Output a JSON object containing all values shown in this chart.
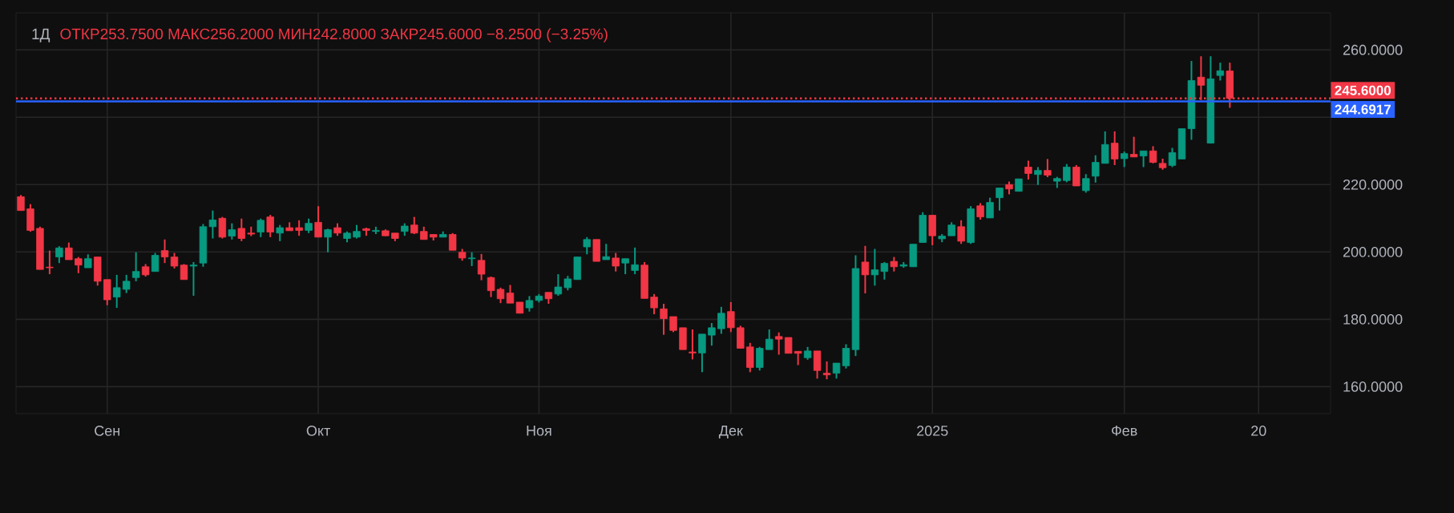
{
  "chart_data": {
    "type": "candlestick",
    "title": "1Д",
    "subtitle": "ОТКР253.7500 МАКС256.2000 МИН242.8000 ЗАКР245.6000 −8.2500 (−3.25%)",
    "categories": [
      null,
      null,
      null,
      null,
      null,
      null,
      null,
      null,
      null,
      "Сен",
      null,
      null,
      null,
      null,
      null,
      null,
      null,
      null,
      null,
      null,
      null,
      null,
      null,
      null,
      null,
      null,
      null,
      null,
      null,
      null,
      null,
      "Окт",
      null,
      null,
      null,
      null,
      null,
      null,
      null,
      null,
      null,
      null,
      null,
      null,
      null,
      null,
      null,
      null,
      null,
      null,
      null,
      null,
      null,
      null,
      "Ноя",
      null,
      null,
      null,
      null,
      null,
      null,
      null,
      null,
      null,
      null,
      null,
      null,
      null,
      null,
      null,
      null,
      null,
      null,
      null,
      "Дек",
      null,
      null,
      null,
      null,
      null,
      null,
      null,
      null,
      null,
      null,
      null,
      null,
      null,
      null,
      null,
      null,
      null,
      null,
      null,
      null,
      "2025",
      null,
      null,
      null,
      null,
      null,
      null,
      null,
      null,
      null,
      null,
      null,
      null,
      null,
      null,
      null,
      null,
      null,
      null,
      null,
      "Фев",
      null,
      null,
      null,
      null,
      null,
      null,
      null,
      null,
      null,
      null,
      null,
      null,
      null,
      "20",
      null,
      null,
      null,
      null,
      null,
      null,
      null
    ],
    "ohlc": [
      [
        216.4,
        216.9,
        212.3,
        212.3
      ],
      [
        212.8,
        214.2,
        206.0,
        206.4
      ],
      [
        207.0,
        207.5,
        194.8,
        194.8
      ],
      [
        195.5,
        200.4,
        193.4,
        195.3
      ],
      [
        198.5,
        201.7,
        196.7,
        201.2
      ],
      [
        201.2,
        202.8,
        197.7,
        197.7
      ],
      [
        198.0,
        198.5,
        193.7,
        196.1
      ],
      [
        195.3,
        199.3,
        195.3,
        198.0
      ],
      [
        198.5,
        198.5,
        190.0,
        191.3
      ],
      [
        191.8,
        191.8,
        184.2,
        185.8
      ],
      [
        186.6,
        193.2,
        183.4,
        189.4
      ],
      [
        188.9,
        193.2,
        187.8,
        191.3
      ],
      [
        192.4,
        199.9,
        191.3,
        194.2
      ],
      [
        195.6,
        196.4,
        192.7,
        193.2
      ],
      [
        194.2,
        199.7,
        194.2,
        199.0
      ],
      [
        200.4,
        203.7,
        196.7,
        198.5
      ],
      [
        198.5,
        199.7,
        195.1,
        195.8
      ],
      [
        196.1,
        196.4,
        191.8,
        191.8
      ],
      [
        195.8,
        197.0,
        187.0,
        196.1
      ],
      [
        196.7,
        208.3,
        195.6,
        207.5
      ],
      [
        207.5,
        212.3,
        204.0,
        209.5
      ],
      [
        210.0,
        210.4,
        204.0,
        204.4
      ],
      [
        204.7,
        208.5,
        203.7,
        206.6
      ],
      [
        207.0,
        209.9,
        203.2,
        204.0
      ],
      [
        205.6,
        207.5,
        204.7,
        205.3
      ],
      [
        205.9,
        209.9,
        204.4,
        209.4
      ],
      [
        210.4,
        211.0,
        204.4,
        205.9
      ],
      [
        205.6,
        208.0,
        203.2,
        207.2
      ],
      [
        207.2,
        208.8,
        206.3,
        206.3
      ],
      [
        207.2,
        209.4,
        204.8,
        206.4
      ],
      [
        206.4,
        209.9,
        205.6,
        208.5
      ],
      [
        208.8,
        213.6,
        204.4,
        204.4
      ],
      [
        204.4,
        206.9,
        199.9,
        206.6
      ],
      [
        207.2,
        208.5,
        204.8,
        205.6
      ],
      [
        204.0,
        206.1,
        202.9,
        205.6
      ],
      [
        204.4,
        208.0,
        204.0,
        206.1
      ],
      [
        206.9,
        207.2,
        204.8,
        206.4
      ],
      [
        206.1,
        207.5,
        205.3,
        206.4
      ],
      [
        206.3,
        206.7,
        204.7,
        204.8
      ],
      [
        205.6,
        205.6,
        203.2,
        204.0
      ],
      [
        206.1,
        208.5,
        204.8,
        207.7
      ],
      [
        208.0,
        210.4,
        205.3,
        205.6
      ],
      [
        206.1,
        207.5,
        203.7,
        203.7
      ],
      [
        205.2,
        205.2,
        203.4,
        204.4
      ],
      [
        204.4,
        206.1,
        204.4,
        205.2
      ],
      [
        205.2,
        205.6,
        200.5,
        200.5
      ],
      [
        199.9,
        200.9,
        197.4,
        198.2
      ],
      [
        198.0,
        199.9,
        195.8,
        198.2
      ],
      [
        197.5,
        199.4,
        191.6,
        193.4
      ],
      [
        192.4,
        192.7,
        186.6,
        188.5
      ],
      [
        188.9,
        189.4,
        184.8,
        186.1
      ],
      [
        187.8,
        190.2,
        184.8,
        184.8
      ],
      [
        185.1,
        185.1,
        181.8,
        181.8
      ],
      [
        183.4,
        186.9,
        182.3,
        185.6
      ],
      [
        185.6,
        187.5,
        185.0,
        186.9
      ],
      [
        188.0,
        188.0,
        184.6,
        186.1
      ],
      [
        187.5,
        193.4,
        187.0,
        189.6
      ],
      [
        189.4,
        192.9,
        188.6,
        192.0
      ],
      [
        191.8,
        198.5,
        191.8,
        198.5
      ],
      [
        201.5,
        204.4,
        199.3,
        203.7
      ],
      [
        203.7,
        203.7,
        197.2,
        197.2
      ],
      [
        197.7,
        202.4,
        197.7,
        198.6
      ],
      [
        198.2,
        199.7,
        194.2,
        195.8
      ],
      [
        196.7,
        198.0,
        193.4,
        198.0
      ],
      [
        194.5,
        201.3,
        193.4,
        196.2
      ],
      [
        196.1,
        197.0,
        186.2,
        186.2
      ],
      [
        186.6,
        187.5,
        181.5,
        183.4
      ],
      [
        183.1,
        184.6,
        175.4,
        180.2
      ],
      [
        180.8,
        180.8,
        176.2,
        176.7
      ],
      [
        177.5,
        177.5,
        171.0,
        171.0
      ],
      [
        170.3,
        177.0,
        168.1,
        170.0
      ],
      [
        170.0,
        175.6,
        164.3,
        175.6
      ],
      [
        175.3,
        178.9,
        172.2,
        177.5
      ],
      [
        177.2,
        183.7,
        175.7,
        181.8
      ],
      [
        182.3,
        185.1,
        176.2,
        177.5
      ],
      [
        177.5,
        178.1,
        171.4,
        171.4
      ],
      [
        171.8,
        173.0,
        164.3,
        165.7
      ],
      [
        165.7,
        171.8,
        164.8,
        171.4
      ],
      [
        171.0,
        177.0,
        171.0,
        174.1
      ],
      [
        174.9,
        176.1,
        169.5,
        174.1
      ],
      [
        174.6,
        174.6,
        169.9,
        169.9
      ],
      [
        170.5,
        170.5,
        166.4,
        169.9
      ],
      [
        168.6,
        171.8,
        168.0,
        170.6
      ],
      [
        170.6,
        170.6,
        162.4,
        164.8
      ],
      [
        164.0,
        167.5,
        162.2,
        163.5
      ],
      [
        164.0,
        167.0,
        162.4,
        167.0
      ],
      [
        166.2,
        172.6,
        165.4,
        171.4
      ],
      [
        171.0,
        199.0,
        169.1,
        195.1
      ],
      [
        197.0,
        201.8,
        187.7,
        193.2
      ],
      [
        193.2,
        200.9,
        190.0,
        194.7
      ],
      [
        194.2,
        197.0,
        191.8,
        196.6
      ],
      [
        197.2,
        198.5,
        194.2,
        195.6
      ],
      [
        195.8,
        197.0,
        195.3,
        196.2
      ],
      [
        195.6,
        202.3,
        195.6,
        202.3
      ],
      [
        202.8,
        211.8,
        202.8,
        210.9
      ],
      [
        210.9,
        210.9,
        202.0,
        204.8
      ],
      [
        203.9,
        205.3,
        202.9,
        204.7
      ],
      [
        204.8,
        208.8,
        204.8,
        208.0
      ],
      [
        207.5,
        209.4,
        202.4,
        203.2
      ],
      [
        202.8,
        213.6,
        202.4,
        212.8
      ],
      [
        213.7,
        214.5,
        209.6,
        210.4
      ],
      [
        210.1,
        216.1,
        210.1,
        214.7
      ],
      [
        216.1,
        219.0,
        212.3,
        219.0
      ],
      [
        220.0,
        220.9,
        217.1,
        218.7
      ],
      [
        218.0,
        221.7,
        218.0,
        221.7
      ],
      [
        225.2,
        227.1,
        221.5,
        223.3
      ],
      [
        223.0,
        225.2,
        219.9,
        224.2
      ],
      [
        224.2,
        227.6,
        222.2,
        222.8
      ],
      [
        221.0,
        222.3,
        219.0,
        221.8
      ],
      [
        221.2,
        226.1,
        220.7,
        225.2
      ],
      [
        225.2,
        225.8,
        219.6,
        219.6
      ],
      [
        218.2,
        223.1,
        217.6,
        221.8
      ],
      [
        222.5,
        228.7,
        220.6,
        226.6
      ],
      [
        226.3,
        235.8,
        226.3,
        231.9
      ],
      [
        232.3,
        235.8,
        225.8,
        227.6
      ],
      [
        227.7,
        229.8,
        225.2,
        229.2
      ],
      [
        229.0,
        234.2,
        228.2,
        228.2
      ],
      [
        228.5,
        230.0,
        225.2,
        230.0
      ],
      [
        230.0,
        231.4,
        226.3,
        226.6
      ],
      [
        226.3,
        227.7,
        224.4,
        225.0
      ],
      [
        225.7,
        230.9,
        225.2,
        229.5
      ],
      [
        227.6,
        236.6,
        227.6,
        236.6
      ],
      [
        236.6,
        256.7,
        233.3,
        250.9
      ],
      [
        251.9,
        258.1,
        245.1,
        249.5
      ],
      [
        232.3,
        258.1,
        232.3,
        251.4
      ],
      [
        252.4,
        256.2,
        250.9,
        253.8
      ],
      [
        253.75,
        256.2,
        242.8,
        245.6
      ],
      null,
      null,
      null,
      null,
      null,
      null,
      null,
      null,
      null,
      null
    ],
    "ylim": [
      152,
      271
    ],
    "yticks": [
      {
        "value": 160,
        "label": "160.0000"
      },
      {
        "value": 180,
        "label": "180.0000"
      },
      {
        "value": 200,
        "label": "200.0000"
      },
      {
        "value": 220,
        "label": "220.0000"
      },
      {
        "value": 240,
        "label": null
      },
      {
        "value": 260,
        "label": "260.0000"
      }
    ],
    "grid": true,
    "ref_lines": [
      {
        "axis": "y",
        "value": 245.6,
        "label": "245.6000",
        "color": "#f23645",
        "line_style": "dotted"
      },
      {
        "axis": "y",
        "value": 244.6917,
        "label": "244.6917",
        "color": "#2962ff",
        "line_style": "solid"
      }
    ]
  }
}
